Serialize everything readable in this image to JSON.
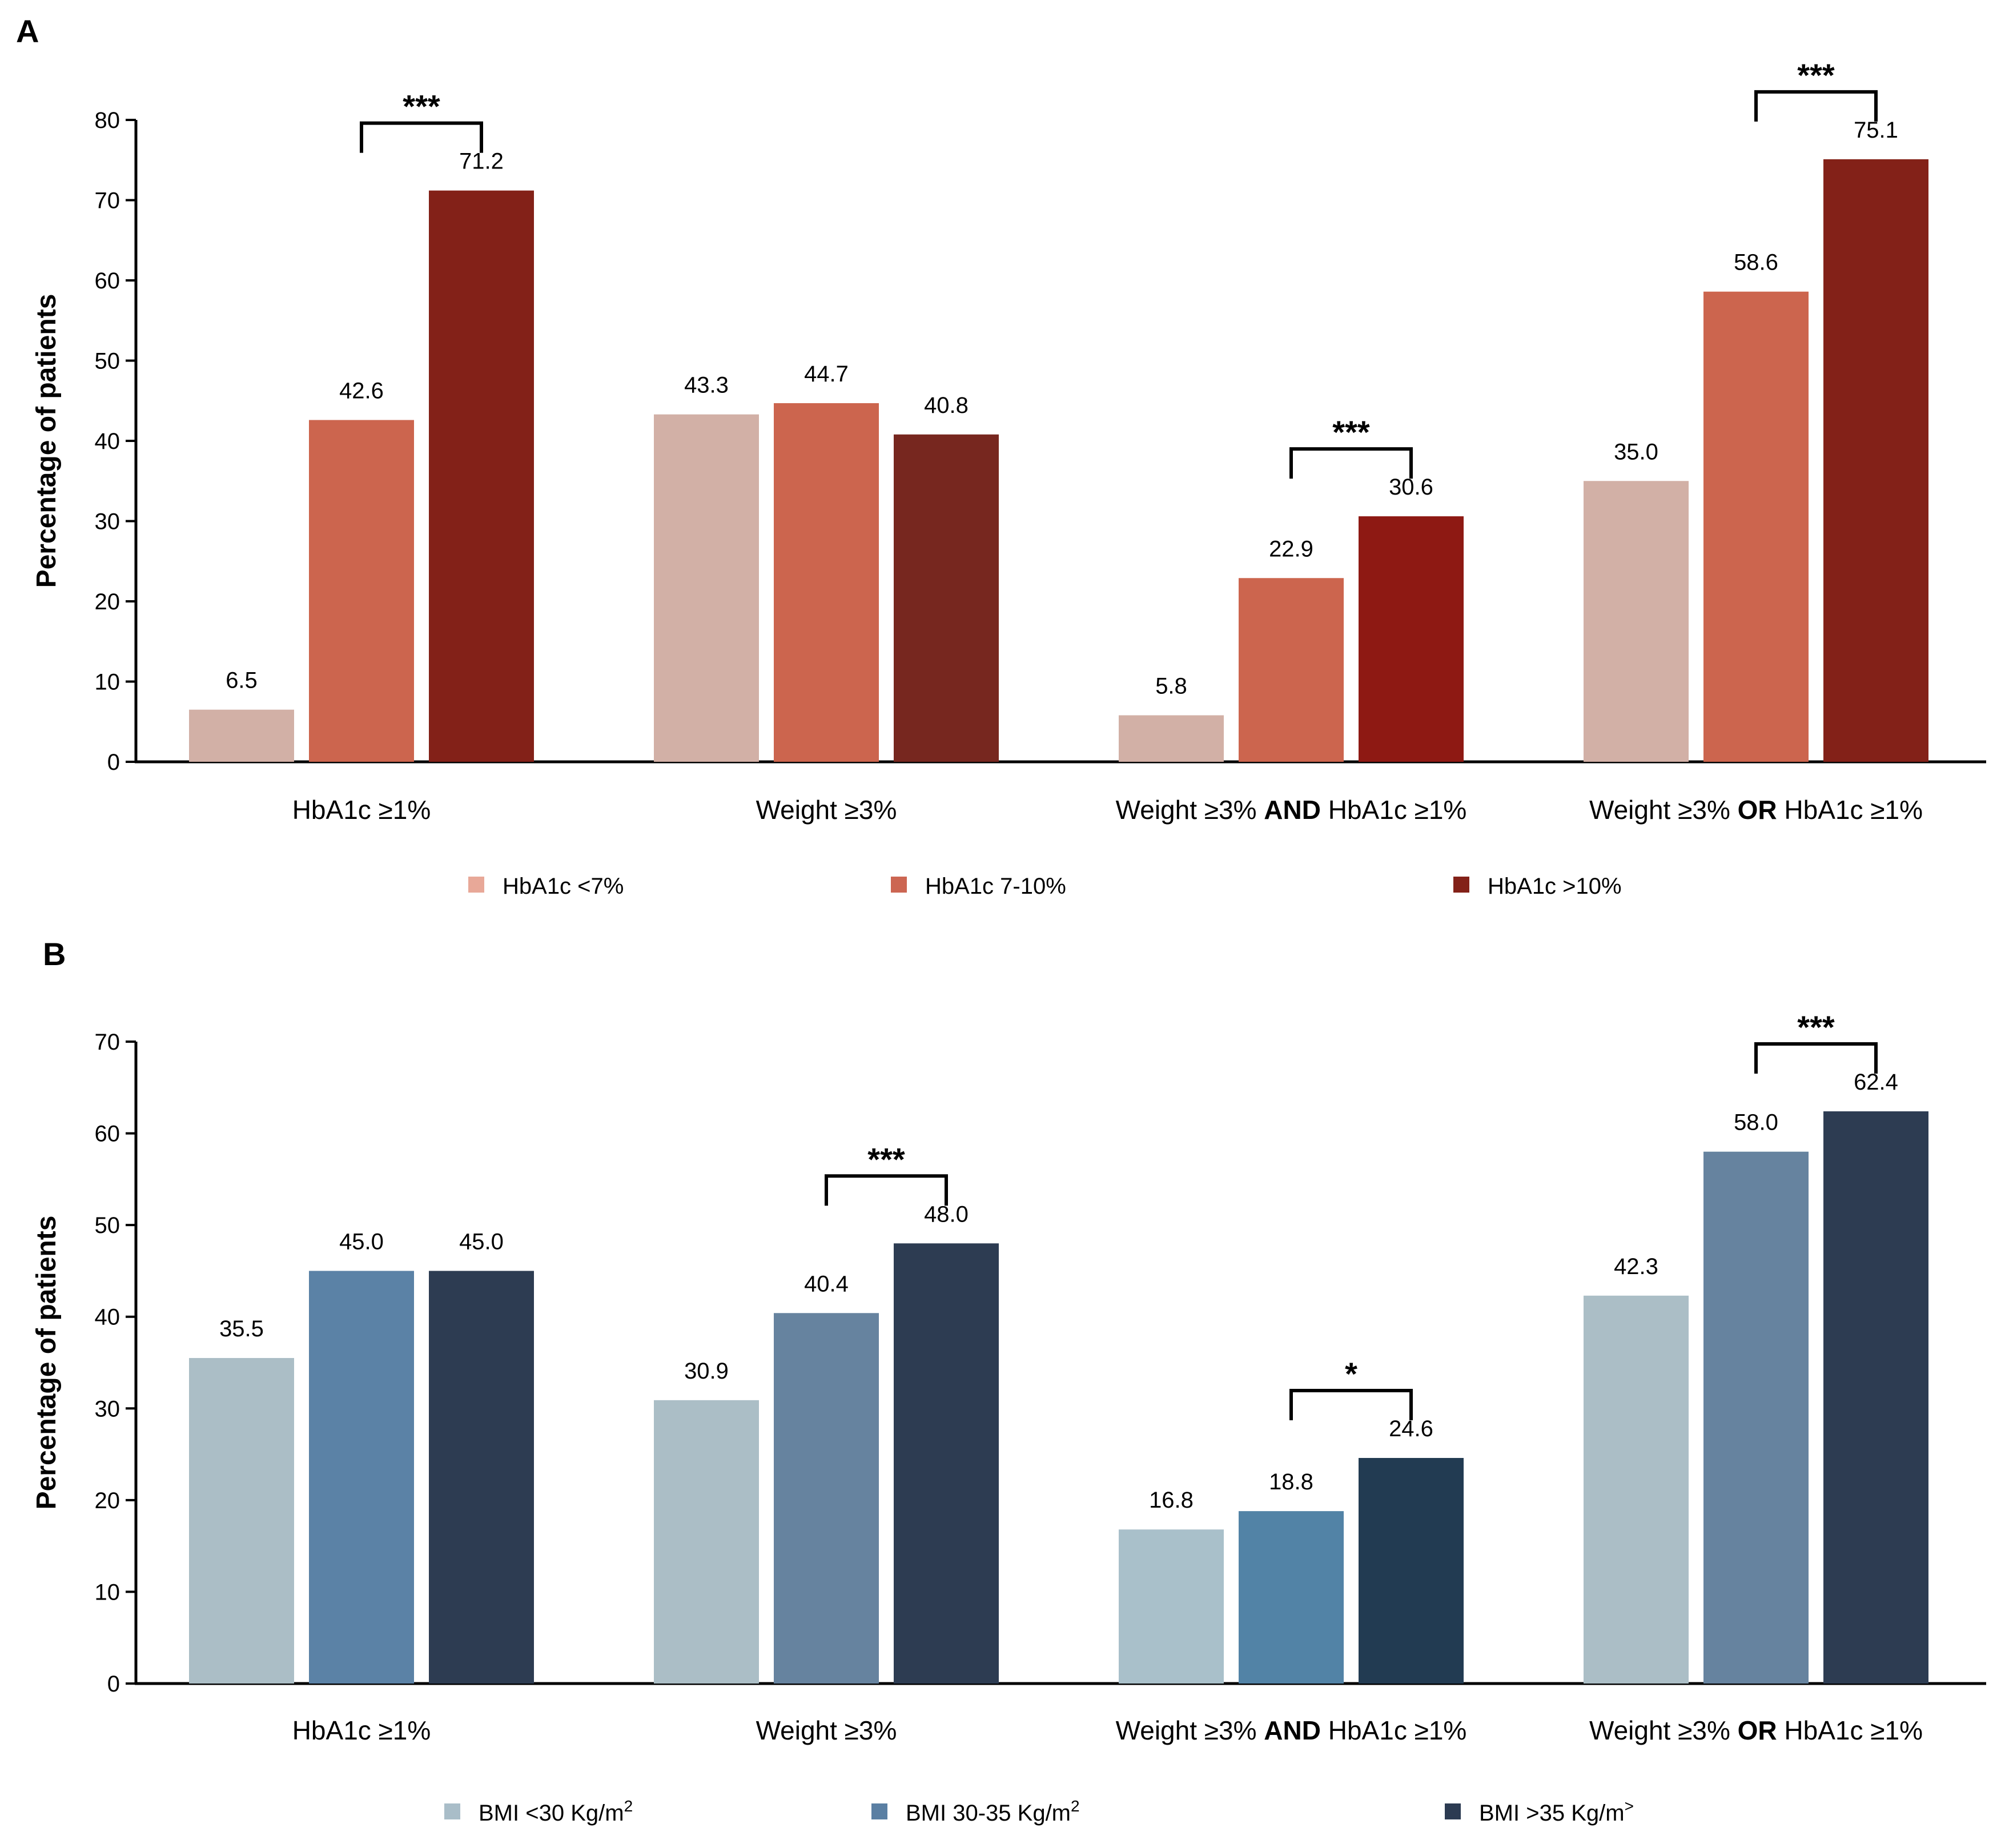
{
  "chart_data": [
    {
      "panel": "A",
      "type": "bar",
      "ylabel": "Percentage of patients",
      "ylim": [
        0,
        80
      ],
      "yticks": [
        0,
        10,
        20,
        30,
        40,
        50,
        60,
        70,
        80
      ],
      "categories": [
        {
          "pre": "HbA1c ≥1%",
          "bold": "",
          "post": ""
        },
        {
          "pre": "Weight ≥3%",
          "bold": "",
          "post": ""
        },
        {
          "pre": "Weight ≥3% ",
          "bold": "AND",
          "post": " HbA1c ≥1%"
        },
        {
          "pre": "Weight ≥3% ",
          "bold": "OR",
          "post": " HbA1c ≥1%"
        }
      ],
      "series": [
        {
          "name": "HbA1c <7%",
          "legend_color": "#e8a898",
          "colors": [
            "#d2b0a6",
            "#d2b0a6",
            "#d2b0a6",
            "#d2b0a6"
          ],
          "values": [
            6.5,
            43.3,
            5.8,
            35.0
          ],
          "labels": [
            "6.5",
            "43.3",
            "5.8",
            "35.0"
          ]
        },
        {
          "name": "HbA1c 7-10%",
          "legend_color": "#cc6652",
          "colors": [
            "#cc654e",
            "#cc654e",
            "#cc654e",
            "#cc654e"
          ],
          "values": [
            42.6,
            44.7,
            22.9,
            58.6
          ],
          "labels": [
            "42.6",
            "44.7",
            "22.9",
            "58.6"
          ]
        },
        {
          "name": "HbA1c >10%",
          "legend_color": "#832118",
          "colors": [
            "#832118",
            "#77271f",
            "#8e1913",
            "#832118"
          ],
          "values": [
            71.2,
            40.8,
            30.6,
            75.1
          ],
          "labels": [
            "71.2",
            "40.8",
            "30.6",
            "75.1"
          ]
        }
      ],
      "significance": [
        {
          "category": 0,
          "from_series": 1,
          "to_series": 2,
          "text": "***"
        },
        {
          "category": 2,
          "from_series": 1,
          "to_series": 2,
          "text": "***"
        },
        {
          "category": 3,
          "from_series": 1,
          "to_series": 2,
          "text": "***"
        }
      ],
      "legend": [
        {
          "text": "HbA1c <7%",
          "sup": "",
          "color": "#e8a898"
        },
        {
          "text": "HbA1c 7-10%",
          "sup": "",
          "color": "#cc6652"
        },
        {
          "text": "HbA1c >10%",
          "sup": "",
          "color": "#832118"
        }
      ]
    },
    {
      "panel": "B",
      "type": "bar",
      "ylabel": "Percentage of patients",
      "ylim": [
        0,
        70
      ],
      "yticks": [
        0,
        10,
        20,
        30,
        40,
        50,
        60,
        70
      ],
      "categories": [
        {
          "pre": "HbA1c ≥1%",
          "bold": "",
          "post": ""
        },
        {
          "pre": "Weight ≥3%",
          "bold": "",
          "post": ""
        },
        {
          "pre": "Weight ≥3% ",
          "bold": "AND",
          "post": " HbA1c ≥1%"
        },
        {
          "pre": "Weight ≥3% ",
          "bold": "OR",
          "post": " HbA1c ≥1%"
        }
      ],
      "series": [
        {
          "name": "BMI <30 Kg/m2",
          "legend_color": "#a9bdc8",
          "colors": [
            "#abbec6",
            "#abbec6",
            "#a9c0ca",
            "#abbec6"
          ],
          "values": [
            35.5,
            30.9,
            16.8,
            42.3
          ],
          "labels": [
            "35.5",
            "30.9",
            "16.8",
            "42.3"
          ]
        },
        {
          "name": "BMI 30-35 Kg/m2",
          "legend_color": "#5a7fa3",
          "colors": [
            "#5b82a6",
            "#66839f",
            "#5283a6",
            "#66839f"
          ],
          "values": [
            45.0,
            40.4,
            18.8,
            58.0
          ],
          "labels": [
            "45.0",
            "40.4",
            "18.8",
            "58.0"
          ]
        },
        {
          "name": "BMI >35 Kg/m>",
          "legend_color": "#2c3b52",
          "colors": [
            "#2d3c52",
            "#2d3c52",
            "#223b52",
            "#2d3c52"
          ],
          "values": [
            45.0,
            48.0,
            24.6,
            62.4
          ],
          "labels": [
            "45.0",
            "48.0",
            "24.6",
            "62.4"
          ]
        }
      ],
      "significance": [
        {
          "category": 1,
          "from_series": 1,
          "to_series": 2,
          "text": "***"
        },
        {
          "category": 2,
          "from_series": 1,
          "to_series": 2,
          "text": "*"
        },
        {
          "category": 3,
          "from_series": 1,
          "to_series": 2,
          "text": "***"
        }
      ],
      "legend": [
        {
          "text": "BMI <30 Kg/m",
          "sup": "2",
          "color": "#a9bdc8"
        },
        {
          "text": "BMI 30-35 Kg/m",
          "sup": "2",
          "color": "#5a7fa3"
        },
        {
          "text": "BMI >35 Kg/m",
          "sup": ">",
          "color": "#2c3b52"
        }
      ]
    }
  ]
}
